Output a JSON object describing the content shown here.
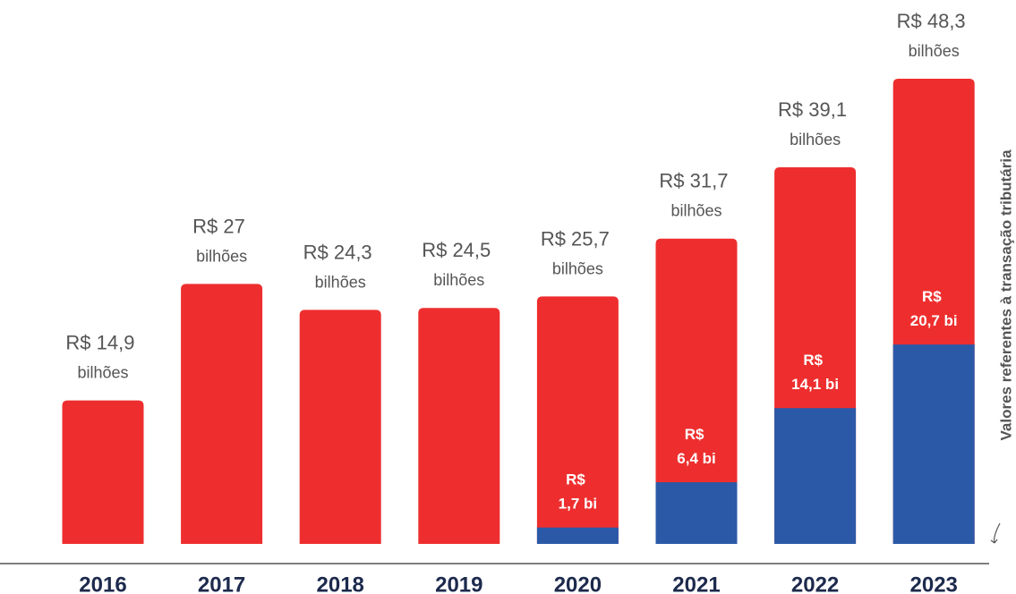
{
  "chart_data": {
    "type": "bar",
    "categories": [
      "2016",
      "2017",
      "2018",
      "2019",
      "2020",
      "2021",
      "2022",
      "2023"
    ],
    "series": [
      {
        "color": "#ee2e2e",
        "values": [
          14.9,
          27,
          24.3,
          24.5,
          25.7,
          31.7,
          39.1,
          48.3
        ],
        "value_labels": [
          "R$ 14,9 bilhões",
          "R$ 27 bilhões",
          "R$ 24,3 bilhões",
          "R$ 24,5 bilhões",
          "R$ 25,7 bilhões",
          "R$ 31,7 bilhões",
          "R$ 39,1 bilhões",
          "R$ 48,3 bilhões"
        ]
      },
      {
        "name": "Valores referentes à transação tributária",
        "color": "#2b59a8",
        "values": [
          null,
          null,
          null,
          null,
          1.7,
          6.4,
          14.1,
          20.7
        ],
        "value_labels": [
          null,
          null,
          null,
          null,
          "R$ 1,7 bi",
          "R$ 6,4 bi",
          "R$ 14,1 bi",
          "R$ 20,7 bi"
        ]
      }
    ]
  }
}
